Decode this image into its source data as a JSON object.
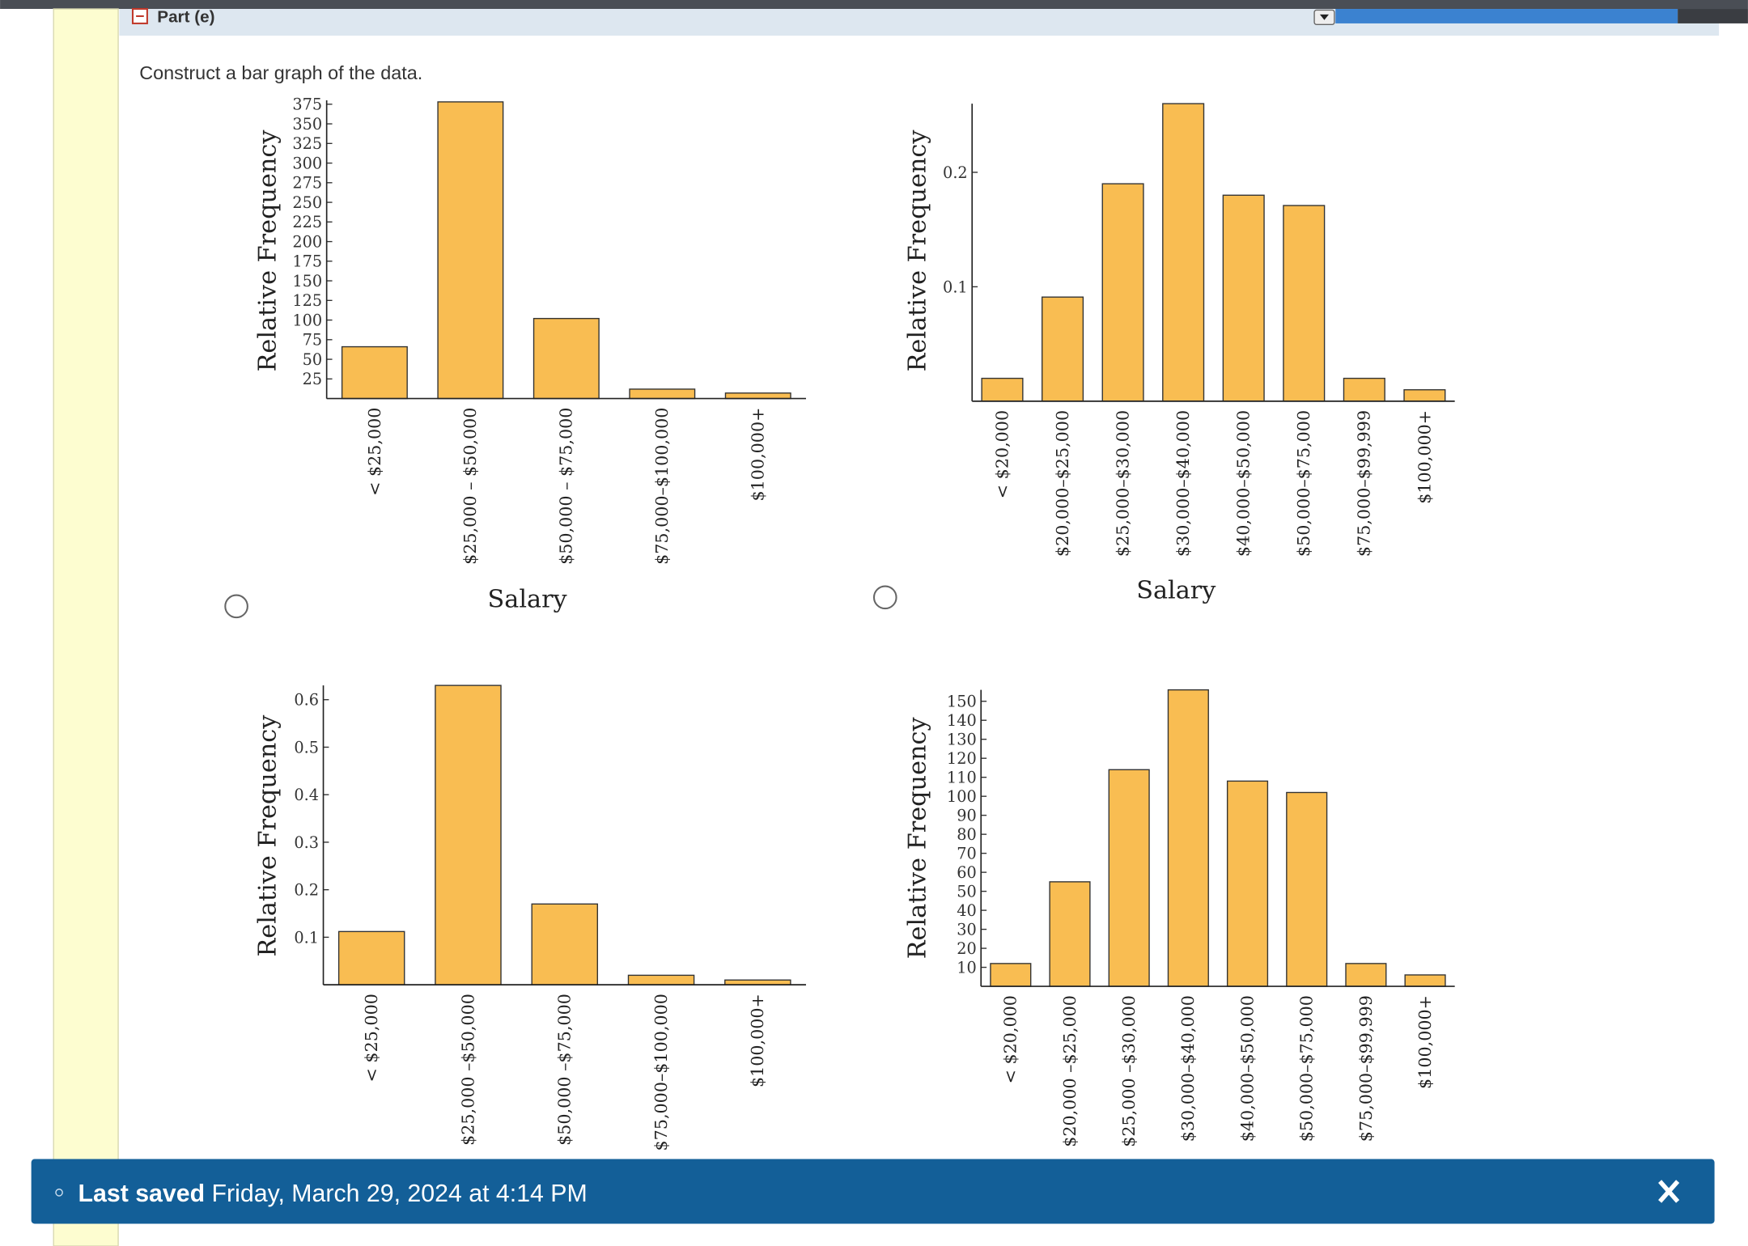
{
  "part_label": "Part (e)",
  "instruction": "Construct a bar graph of the data.",
  "chart_data": [
    {
      "type": "bar",
      "y_label": "Relative Frequency",
      "x_label": "Salary",
      "categories": [
        "< $25,000",
        "$25,000 – $50,000",
        "$50,000 – $75,000",
        "$75,000–$100,000",
        "$100,000+"
      ],
      "values": [
        66,
        378,
        102,
        12,
        7
      ],
      "color": "#f9bd52",
      "ylim": [
        0,
        380
      ],
      "yticks": [
        25,
        50,
        75,
        100,
        125,
        150,
        175,
        200,
        225,
        250,
        275,
        300,
        325,
        350,
        375
      ]
    },
    {
      "type": "bar",
      "y_label": "Relative Frequency",
      "x_label": "Salary",
      "categories": [
        "< $20,000",
        "$20,000–$25,000",
        "$25,000–$30,000",
        "$30,000–$40,000",
        "$40,000–$50,000",
        "$50,000–$75,000",
        "$75,000–$99,999",
        "$100,000+"
      ],
      "values": [
        0.02,
        0.091,
        0.19,
        0.26,
        0.18,
        0.171,
        0.02,
        0.01
      ],
      "color": "#f9bd52",
      "ylim": [
        0,
        0.26
      ],
      "yticks": [
        0.1,
        0.2
      ]
    },
    {
      "type": "bar",
      "y_label": "Relative Frequency",
      "categories": [
        "< $25,000",
        "$25,000 –$50,000",
        "$50,000 –$75,000",
        "$75,000–$100,000",
        "$100,000+"
      ],
      "values": [
        0.112,
        0.63,
        0.17,
        0.02,
        0.01
      ],
      "color": "#f9bd52",
      "ylim": [
        0,
        0.63
      ],
      "yticks": [
        0.1,
        0.2,
        0.3,
        0.4,
        0.5,
        0.6
      ]
    },
    {
      "type": "bar",
      "y_label": "Relative Frequency",
      "categories": [
        "< $20,000",
        "$20,000 –$25,000",
        "$25,000 –$30,000",
        "$30,000–$40,000",
        "$40,000–$50,000",
        "$50,000–$75,000",
        "$75,000–$99,999",
        "$100,000+"
      ],
      "values": [
        12,
        55,
        114,
        156,
        108,
        102,
        12,
        6
      ],
      "color": "#f9bd52",
      "ylim": [
        0,
        156
      ],
      "yticks": [
        10,
        20,
        30,
        40,
        50,
        60,
        70,
        80,
        90,
        100,
        110,
        120,
        130,
        140,
        150
      ]
    }
  ],
  "status": {
    "label": "Last saved",
    "time": "Friday, March 29, 2024 at 4:14 PM"
  }
}
